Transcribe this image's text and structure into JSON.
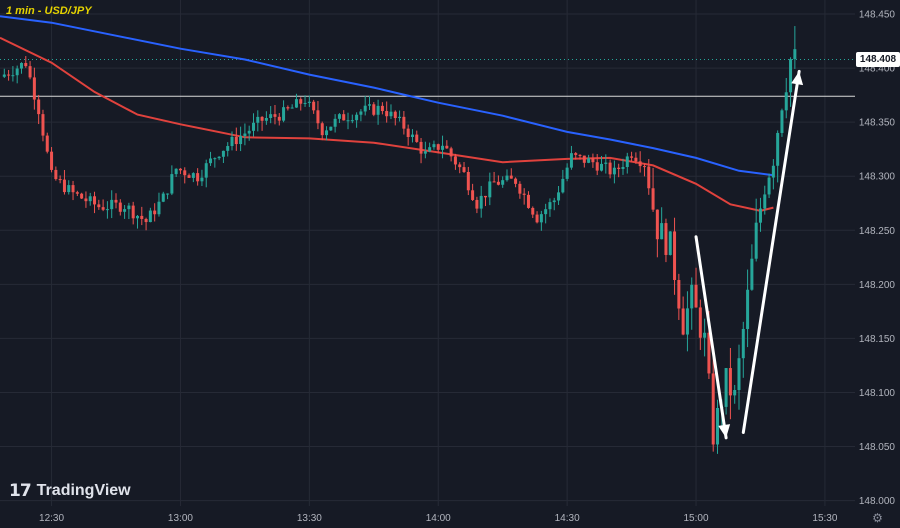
{
  "header": {
    "title": "1 min - USD/JPY"
  },
  "branding": {
    "logo_mark": "17",
    "logo_text": "TradingView"
  },
  "icons": {
    "settings": "gear-icon"
  },
  "colors": {
    "background": "#161a25",
    "grid": "#262a36",
    "axis_text": "#b2b5be",
    "bull": "#26a69a",
    "bear": "#ef5350",
    "ma_blue": "#2962ff",
    "ma_red": "#e0423d",
    "hline": "#d9d9d9",
    "arrow": "#ffffff"
  },
  "chart_data": {
    "type": "candlestick",
    "title": "1 min - USD/JPY",
    "y_axis": {
      "ticks": [
        "148.450",
        "148.400",
        "148.350",
        "148.300",
        "148.250",
        "148.200",
        "148.150",
        "148.100",
        "148.050",
        "148.000"
      ],
      "range": [
        147.995,
        148.463
      ]
    },
    "x_axis": {
      "ticks": [
        "12:30",
        "13:00",
        "13:30",
        "14:00",
        "14:30",
        "15:00",
        "15:30"
      ],
      "range": [
        "12:18",
        "15:37"
      ]
    },
    "grid": true,
    "last_price": "148.408",
    "horizontal_level": 148.374,
    "series": [
      {
        "kind": "moving_average",
        "color": "blue",
        "points": [
          [
            "12:18",
            148.448
          ],
          [
            "12:30",
            148.442
          ],
          [
            "12:45",
            148.43
          ],
          [
            "13:00",
            148.418
          ],
          [
            "13:15",
            148.408
          ],
          [
            "13:30",
            148.394
          ],
          [
            "13:45",
            148.382
          ],
          [
            "14:00",
            148.368
          ],
          [
            "14:15",
            148.356
          ],
          [
            "14:30",
            148.341
          ],
          [
            "14:40",
            148.334
          ],
          [
            "14:50",
            148.326
          ],
          [
            "15:00",
            148.317
          ],
          [
            "15:10",
            148.305
          ],
          [
            "15:18",
            148.301
          ]
        ]
      },
      {
        "kind": "moving_average",
        "color": "red",
        "points": [
          [
            "12:18",
            148.428
          ],
          [
            "12:30",
            148.405
          ],
          [
            "12:40",
            148.378
          ],
          [
            "12:50",
            148.357
          ],
          [
            "13:00",
            148.348
          ],
          [
            "13:15",
            148.336
          ],
          [
            "13:30",
            148.335
          ],
          [
            "13:45",
            148.331
          ],
          [
            "14:00",
            148.322
          ],
          [
            "14:15",
            148.313
          ],
          [
            "14:30",
            148.316
          ],
          [
            "14:40",
            148.317
          ],
          [
            "14:50",
            148.31
          ],
          [
            "15:00",
            148.293
          ],
          [
            "15:08",
            148.274
          ],
          [
            "15:15",
            148.268
          ],
          [
            "15:18",
            148.271
          ]
        ]
      },
      {
        "kind": "ohlc_path",
        "points": [
          [
            "12:19",
            148.392
          ],
          [
            "12:25",
            148.405
          ],
          [
            "12:28",
            148.362
          ],
          [
            "12:31",
            148.3
          ],
          [
            "12:36",
            148.284
          ],
          [
            "12:42",
            148.272
          ],
          [
            "12:48",
            148.273
          ],
          [
            "12:53",
            148.258
          ],
          [
            "12:57",
            148.28
          ],
          [
            "13:00",
            148.307
          ],
          [
            "13:05",
            148.3
          ],
          [
            "13:10",
            148.323
          ],
          [
            "13:16",
            148.34
          ],
          [
            "13:20",
            148.352
          ],
          [
            "13:25",
            148.358
          ],
          [
            "13:30",
            148.371
          ],
          [
            "13:34",
            148.343
          ],
          [
            "13:39",
            148.355
          ],
          [
            "13:43",
            148.36
          ],
          [
            "13:48",
            148.363
          ],
          [
            "13:53",
            148.346
          ],
          [
            "13:58",
            148.32
          ],
          [
            "14:02",
            148.33
          ],
          [
            "14:07",
            148.302
          ],
          [
            "14:10",
            148.275
          ],
          [
            "14:14",
            148.294
          ],
          [
            "14:19",
            148.296
          ],
          [
            "14:24",
            148.262
          ],
          [
            "14:28",
            148.278
          ],
          [
            "14:32",
            148.318
          ],
          [
            "14:37",
            148.313
          ],
          [
            "14:42",
            148.303
          ],
          [
            "14:46",
            148.322
          ],
          [
            "14:49",
            148.312
          ],
          [
            "14:52",
            148.252
          ],
          [
            "14:55",
            148.235
          ],
          [
            "14:58",
            148.165
          ],
          [
            "15:00",
            148.187
          ],
          [
            "15:03",
            148.148
          ],
          [
            "15:05",
            148.061
          ],
          [
            "15:08",
            148.11
          ],
          [
            "15:10",
            148.095
          ],
          [
            "15:13",
            148.188
          ],
          [
            "15:15",
            148.249
          ],
          [
            "15:17",
            148.293
          ],
          [
            "15:19",
            148.319
          ],
          [
            "15:21",
            148.37
          ],
          [
            "15:23",
            148.408
          ]
        ]
      }
    ],
    "annotations": [
      {
        "kind": "arrow",
        "from": [
          "15:00",
          148.244
        ],
        "to": [
          "15:07",
          148.058
        ]
      },
      {
        "kind": "arrow",
        "from": [
          "15:11",
          148.063
        ],
        "to": [
          "15:24",
          148.397
        ]
      }
    ]
  }
}
